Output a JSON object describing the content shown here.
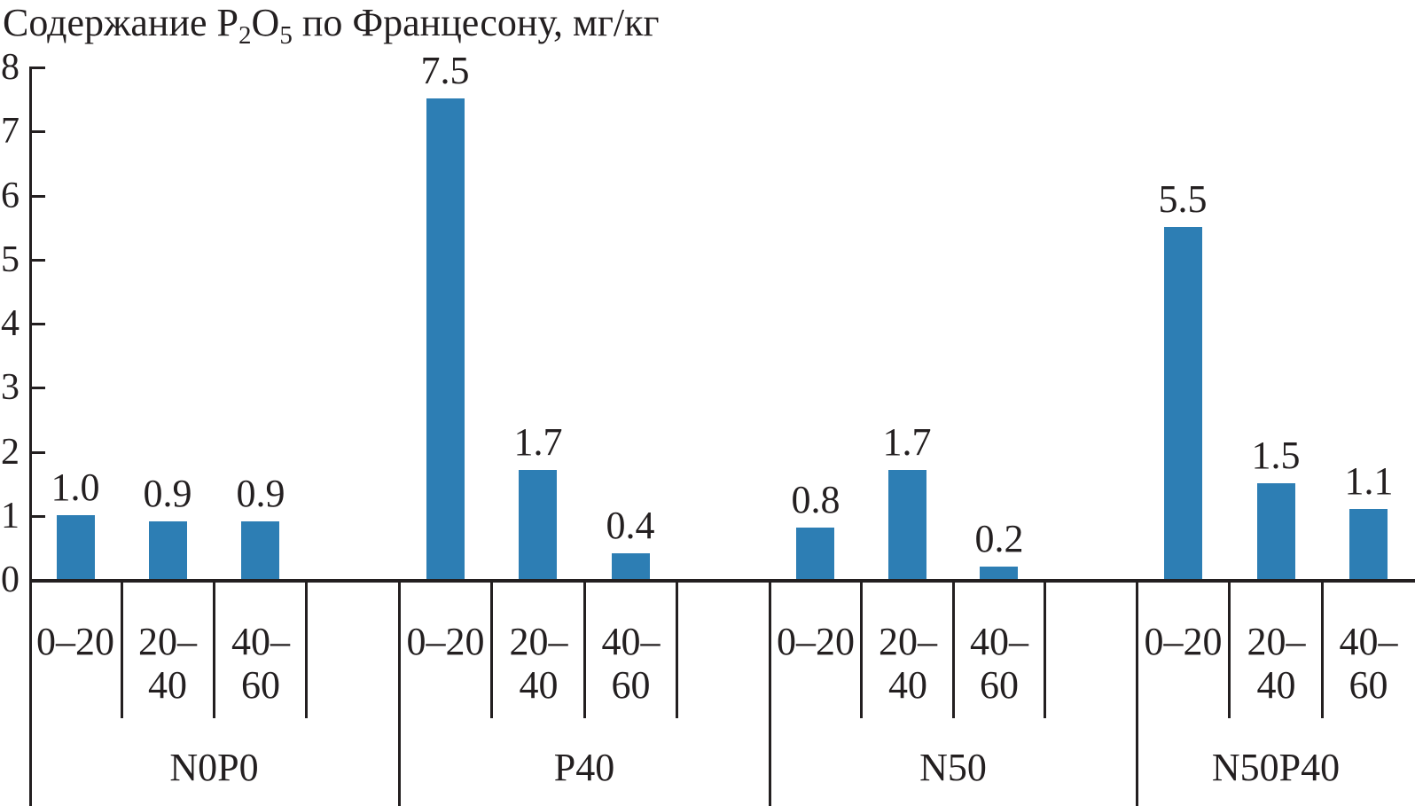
{
  "title": {
    "part1": "Содержание P",
    "sub1": "2",
    "part2": "O",
    "sub2": "5",
    "part3": " по Францесону, мг/кг"
  },
  "colors": {
    "bar": "#2d7eb4",
    "line": "#231f20",
    "text": "#231f20",
    "background": "#ffffff"
  },
  "chart_data": {
    "type": "bar",
    "title": "Содержание P2O5 по Францесону, мг/кг",
    "xlabel": "",
    "ylabel": "мг/кг",
    "ylim": [
      0,
      8
    ],
    "y_ticks": [
      "0",
      "1",
      "2",
      "3",
      "4",
      "5",
      "6",
      "7",
      "8"
    ],
    "grid": "off",
    "legend": "none",
    "depth_categories": [
      {
        "line1": "0–20",
        "line2": ""
      },
      {
        "line1": "20–",
        "line2": "40"
      },
      {
        "line1": "40–",
        "line2": "60"
      }
    ],
    "groups": [
      {
        "name": "N0P0",
        "values": [
          1.0,
          0.9,
          0.9
        ],
        "labels": [
          "1.0",
          "0.9",
          "0.9"
        ]
      },
      {
        "name": "P40",
        "values": [
          7.5,
          1.7,
          0.4
        ],
        "labels": [
          "7.5",
          "1.7",
          "0.4"
        ]
      },
      {
        "name": "N50",
        "values": [
          0.8,
          1.7,
          0.2
        ],
        "labels": [
          "0.8",
          "1.7",
          "0.2"
        ]
      },
      {
        "name": "N50P40",
        "values": [
          5.5,
          1.5,
          1.1
        ],
        "labels": [
          "5.5",
          "1.5",
          "1.1"
        ]
      }
    ]
  }
}
